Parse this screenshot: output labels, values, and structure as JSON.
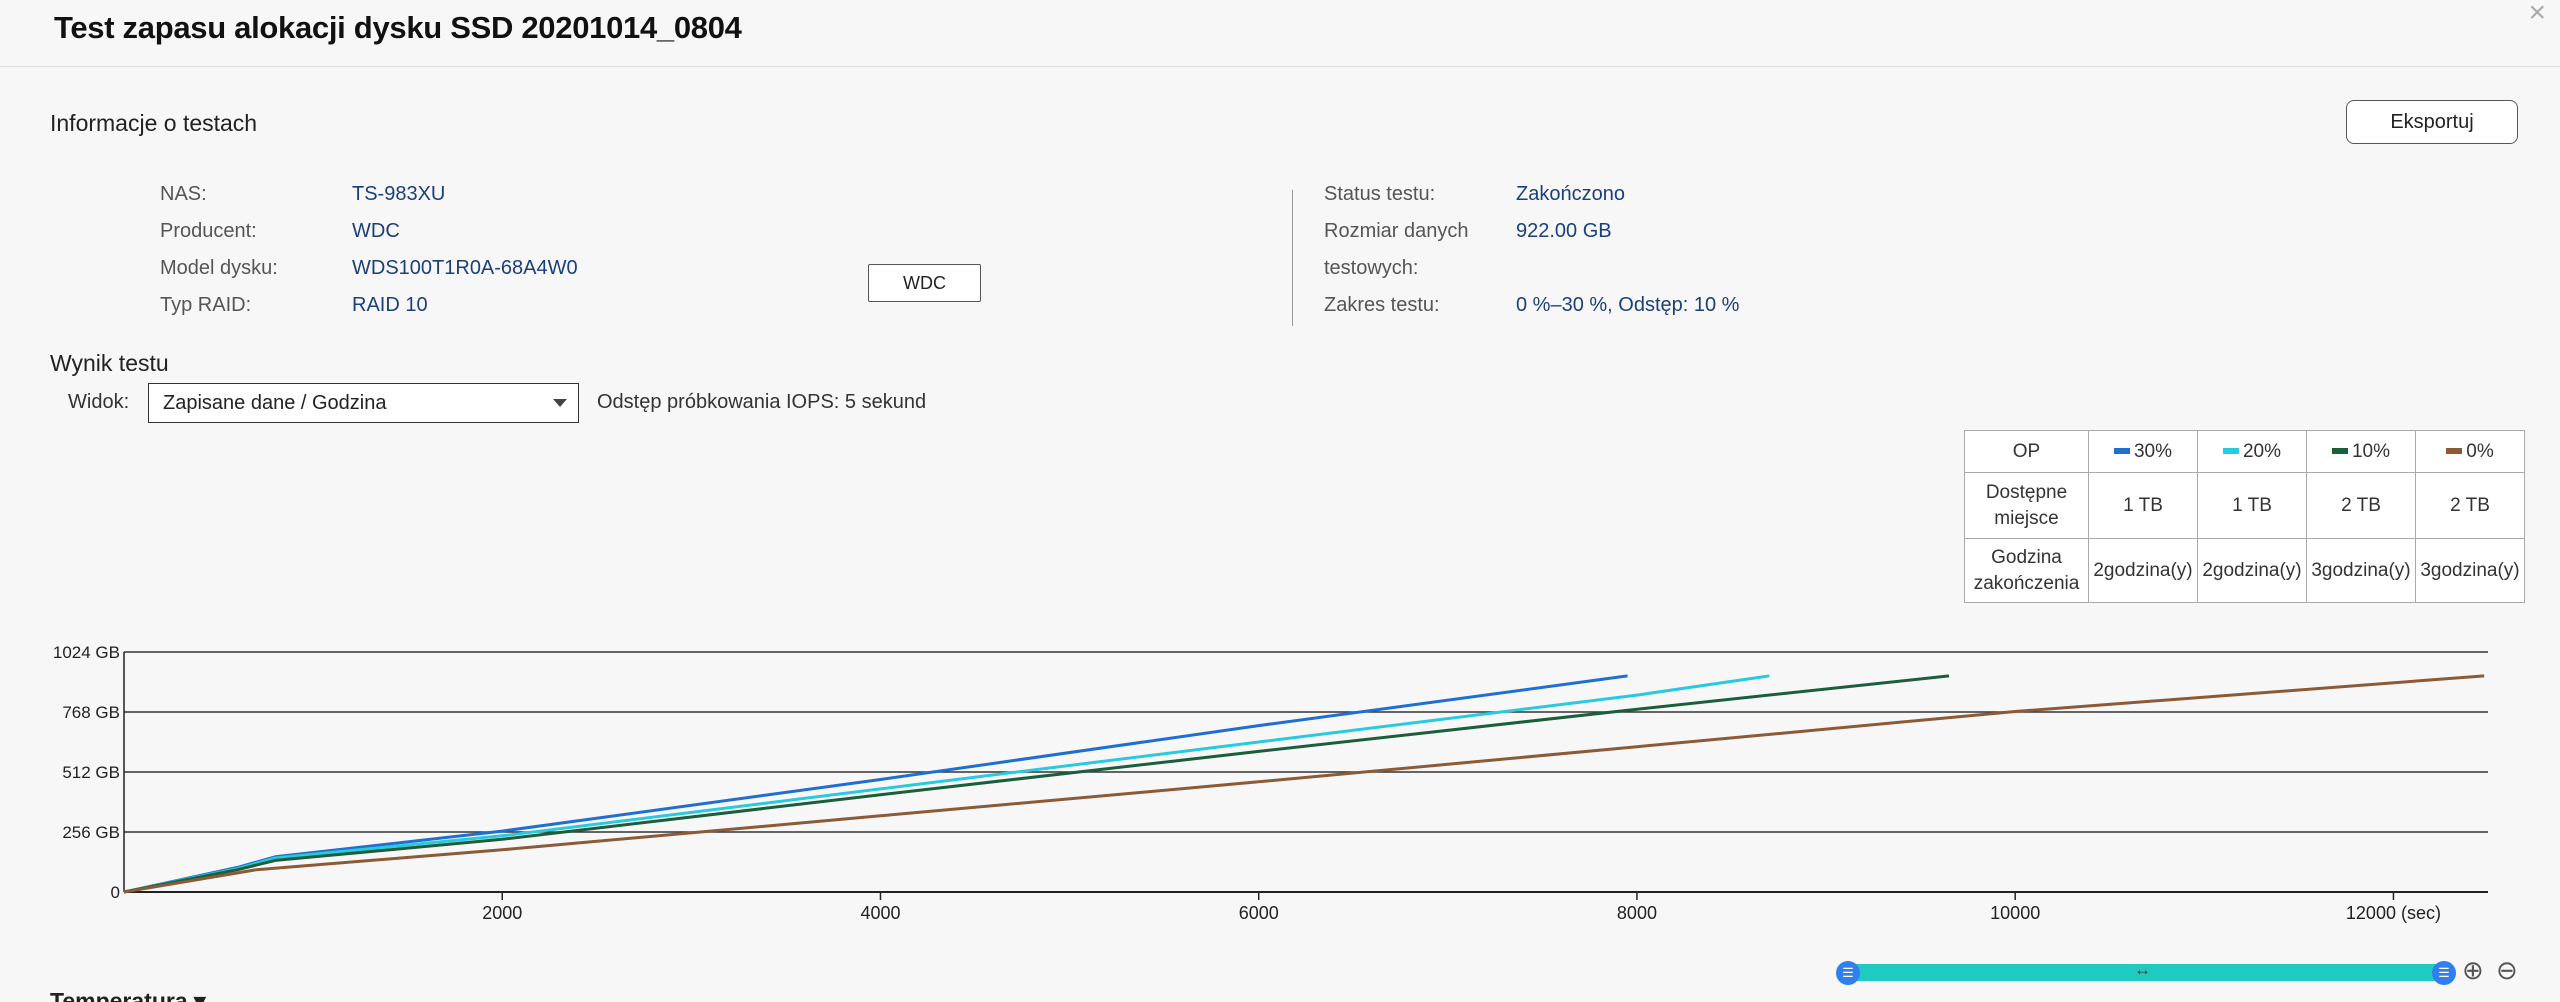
{
  "window": {
    "title": "Test zapasu alokacji dysku SSD 20201014_0804",
    "close_glyph": "×"
  },
  "info": {
    "section_title": "Informacje o testach",
    "export_label": "Eksportuj",
    "left": [
      {
        "label": "NAS:",
        "value": "TS-983XU"
      },
      {
        "label": "Producent:",
        "value": "WDC"
      },
      {
        "label": "Model dysku:",
        "value": "WDS100T1R0A-68A4W0"
      },
      {
        "label": "Typ RAID:",
        "value": "RAID 10"
      }
    ],
    "disk_button": "WDC",
    "right": {
      "status_label": "Status testu:",
      "status_value": "Zakończono",
      "size_label_1": "Rozmiar danych",
      "size_label_2": "testowych:",
      "size_value": "922.00 GB",
      "range_label": "Zakres testu:",
      "range_value": "0 %–30 %, Odstęp: 10 %"
    }
  },
  "result": {
    "section_title": "Wynik testu",
    "view_label": "Widok:",
    "view_selected": "Zapisane dane / Godzina",
    "sample_text": "Odstęp próbkowania IOPS: 5 sekund"
  },
  "op_table": {
    "header": "OP",
    "columns": [
      {
        "label": "30%",
        "color": "#1f6fd0"
      },
      {
        "label": "20%",
        "color": "#29c9e0"
      },
      {
        "label": "10%",
        "color": "#1b5e3b"
      },
      {
        "label": "0%",
        "color": "#8b5a36"
      }
    ],
    "rows": [
      {
        "label_1": "Dostępne",
        "label_2": "miejsce",
        "values": [
          "1 TB",
          "1 TB",
          "2 TB",
          "2 TB"
        ]
      },
      {
        "label_1": "Godzina",
        "label_2": "zakończenia",
        "values": [
          "2godzina(y)",
          "2godzina(y)",
          "3godzina(y)",
          "3godzina(y)"
        ]
      }
    ]
  },
  "chart_data": {
    "type": "line",
    "xlim": [
      0,
      12500
    ],
    "ylim": [
      0,
      1024
    ],
    "x_ticks": [
      2000,
      4000,
      6000,
      8000,
      10000,
      12000
    ],
    "x_tick_labels": [
      "2000",
      "4000",
      "6000",
      "8000",
      "10000",
      "12000 (sec)"
    ],
    "y_ticks": [
      0,
      256,
      512,
      768,
      1024
    ],
    "y_tick_labels": [
      "0",
      "256 GB",
      "512 GB",
      "768 GB",
      "1024 GB"
    ],
    "grid": true,
    "series": [
      {
        "name": "30%",
        "color": "#1f6fd0",
        "x": [
          0,
          600,
          800,
          2000,
          4000,
          6000,
          7950
        ],
        "y": [
          0,
          105,
          150,
          260,
          480,
          710,
          922
        ]
      },
      {
        "name": "20%",
        "color": "#29c9e0",
        "x": [
          0,
          600,
          800,
          2000,
          4000,
          6000,
          8000,
          8700
        ],
        "y": [
          0,
          100,
          145,
          240,
          440,
          640,
          840,
          922
        ]
      },
      {
        "name": "10%",
        "color": "#1b5e3b",
        "x": [
          0,
          600,
          800,
          2000,
          4000,
          6000,
          8000,
          9650
        ],
        "y": [
          0,
          95,
          135,
          225,
          415,
          600,
          780,
          922
        ]
      },
      {
        "name": "0%",
        "color": "#8b5a36",
        "x": [
          0,
          700,
          2000,
          4000,
          6000,
          8000,
          10000,
          12480
        ],
        "y": [
          0,
          95,
          180,
          325,
          470,
          620,
          770,
          922
        ]
      }
    ]
  },
  "zoom": {
    "handle_glyph": "☰",
    "center_glyph": "↔",
    "zoom_in": "⊕",
    "zoom_out": "⊖"
  },
  "temperature": {
    "label": "Temperatura"
  }
}
